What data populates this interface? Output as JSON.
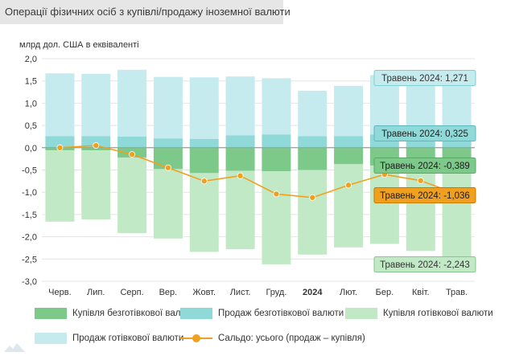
{
  "title": "Операції фізичних осіб з купівлі/продажу іноземної валюти",
  "chart_data": {
    "type": "bar",
    "ylabel": "млрд дол. США в еквіваленті",
    "ylim": [
      -3.0,
      2.0
    ],
    "yticks": [
      "2,0",
      "1,5",
      "1,0",
      "0,5",
      "0,0",
      "-0,5",
      "-1,0",
      "-1,5",
      "-2,0",
      "-2,5",
      "-3,0"
    ],
    "categories": [
      "Черв.",
      "Лип.",
      "Серп.",
      "Вер.",
      "Жовт.",
      "Лист.",
      "Груд.",
      "2024",
      "Лют.",
      "Бер.",
      "Квіт.",
      "Трав."
    ],
    "bold_category": "2024",
    "grid": true,
    "legend_position": "bottom",
    "series": [
      {
        "name": "Купівля безготівкової валюти",
        "color": "#7dc98a",
        "values": [
          -0.06,
          -0.06,
          -0.22,
          -0.48,
          -0.57,
          -0.52,
          -0.53,
          -0.5,
          -0.37,
          -0.4,
          -0.43,
          -0.389
        ]
      },
      {
        "name": "Продаж безготівкової валюти",
        "color": "#8fd9d9",
        "values": [
          0.26,
          0.26,
          0.25,
          0.21,
          0.2,
          0.28,
          0.3,
          0.26,
          0.26,
          0.3,
          0.29,
          0.325
        ]
      },
      {
        "name": "Купівля готівкової валюти",
        "color": "#c2e9c6",
        "values": [
          -1.6,
          -1.55,
          -1.7,
          -1.56,
          -1.77,
          -1.76,
          -2.09,
          -1.9,
          -1.87,
          -1.76,
          -1.89,
          -2.243
        ]
      },
      {
        "name": "Продаж готівкової валюти",
        "color": "#c5ebee",
        "values": [
          1.41,
          1.4,
          1.5,
          1.38,
          1.38,
          1.32,
          1.26,
          1.02,
          1.13,
          1.33,
          1.31,
          1.271
        ]
      },
      {
        "name": "Сальдо: усього (продаж – купівля)",
        "type": "line",
        "color": "#f0a01e",
        "values": [
          0.0,
          0.05,
          -0.15,
          -0.45,
          -0.75,
          -0.63,
          -1.04,
          -1.12,
          -0.84,
          -0.6,
          -0.74,
          -1.036
        ]
      }
    ],
    "annotations": [
      {
        "text": "Травень 2024: 1,271",
        "bg": "#c5ebee",
        "border": "#7fcfd3",
        "color": "#333333",
        "value": 1.271
      },
      {
        "text": "Травень 2024: 0,325",
        "bg": "#8fd9d9",
        "border": "#5fb7bd",
        "color": "#222222",
        "value": 0.325
      },
      {
        "text": "Травень 2024: -0,389",
        "bg": "#7dc98a",
        "border": "#5aa866",
        "color": "#1a1a1a",
        "value": -0.389
      },
      {
        "text": "Травень 2024: -1,036",
        "bg": "#f0a01e",
        "border": "#c77a00",
        "color": "#1a1a1a",
        "value": -1.036
      },
      {
        "text": "Травень 2024: -2,243",
        "bg": "#c2e9c6",
        "border": "#86c88f",
        "color": "#333333",
        "value": -2.243
      }
    ]
  }
}
